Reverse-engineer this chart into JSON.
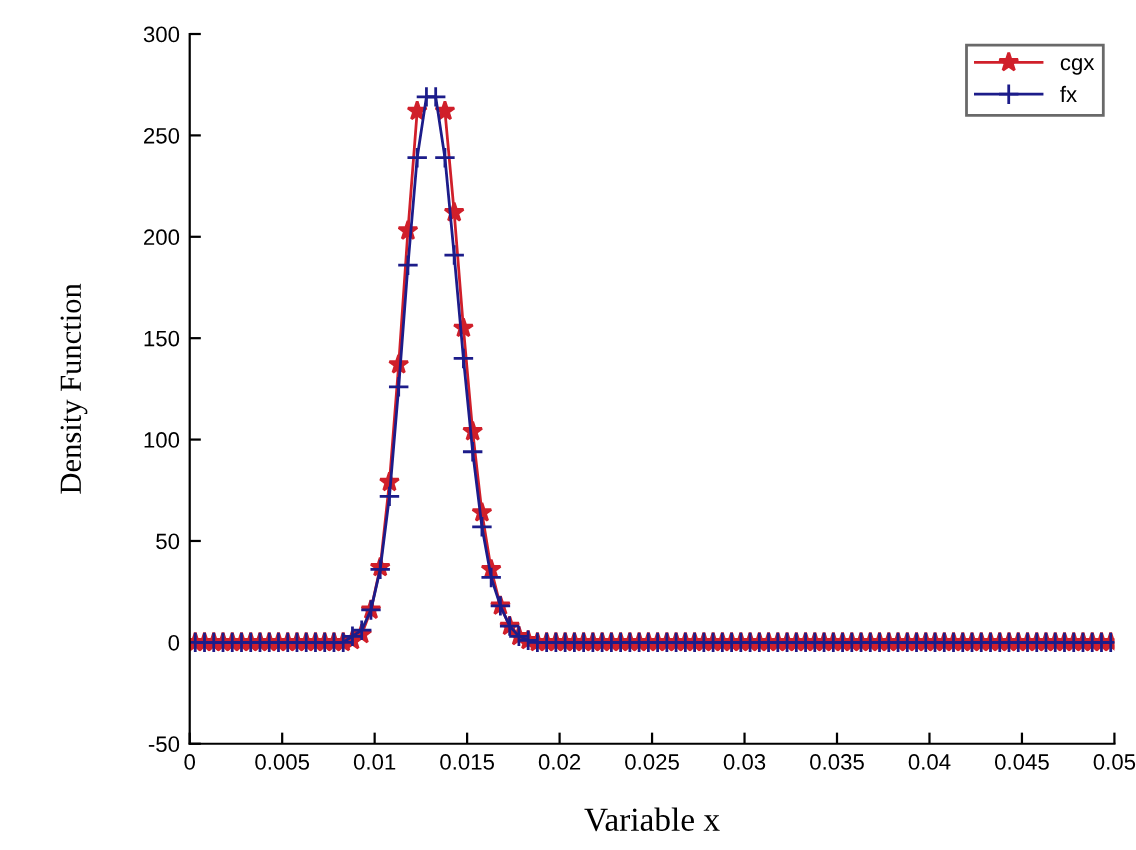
{
  "chart_data": {
    "type": "line",
    "xlabel": "Variable x",
    "ylabel": "Density Function",
    "x": [
      0.0003,
      0.0008,
      0.0013,
      0.0018,
      0.0023,
      0.0028,
      0.0033,
      0.0038,
      0.0043,
      0.0048,
      0.0053,
      0.0058,
      0.0063,
      0.0068,
      0.0073,
      0.0078,
      0.0083,
      0.0088,
      0.0093,
      0.0098,
      0.0103,
      0.0108,
      0.0113,
      0.0118,
      0.0123,
      0.0128,
      0.0133,
      0.0138,
      0.0143,
      0.0148,
      0.0153,
      0.0158,
      0.0163,
      0.0168,
      0.0173,
      0.0178,
      0.0183,
      0.0188,
      0.0193,
      0.0198,
      0.0203,
      0.0208,
      0.0213,
      0.0218,
      0.0223,
      0.0228,
      0.0233,
      0.0238,
      0.0243,
      0.0248,
      0.0253,
      0.0258,
      0.0263,
      0.0268,
      0.0273,
      0.0278,
      0.0283,
      0.0288,
      0.0293,
      0.0298,
      0.0303,
      0.0308,
      0.0313,
      0.0318,
      0.0323,
      0.0328,
      0.0333,
      0.0338,
      0.0343,
      0.0348,
      0.0353,
      0.0358,
      0.0363,
      0.0368,
      0.0373,
      0.0378,
      0.0383,
      0.0388,
      0.0393,
      0.0398,
      0.0403,
      0.0408,
      0.0413,
      0.0418,
      0.0423,
      0.0428,
      0.0433,
      0.0438,
      0.0443,
      0.0448,
      0.0453,
      0.0458,
      0.0463,
      0.0468,
      0.0473,
      0.0478,
      0.0483,
      0.0488,
      0.0493,
      0.0498
    ],
    "series": [
      {
        "name": "cgx",
        "color": "#d01f2a",
        "marker": "star",
        "values": [
          0,
          0,
          0,
          0,
          0,
          0,
          0,
          0,
          0,
          0,
          0,
          0,
          0,
          0,
          0,
          0,
          0,
          1,
          4,
          16,
          37,
          79,
          137,
          203,
          262,
          null,
          null,
          262,
          212,
          155,
          104,
          64,
          36,
          18,
          8,
          3,
          1,
          0,
          0,
          0,
          0,
          0,
          0,
          0,
          0,
          0,
          0,
          0,
          0,
          0,
          0,
          0,
          0,
          0,
          0,
          0,
          0,
          0,
          0,
          0,
          0,
          0,
          0,
          0,
          0,
          0,
          0,
          0,
          0,
          0,
          0,
          0,
          0,
          0,
          0,
          0,
          0,
          0,
          0,
          0,
          0,
          0,
          0,
          0,
          0,
          0,
          0,
          0,
          0,
          0,
          0,
          0,
          0,
          0,
          0,
          0,
          0,
          0,
          0,
          0
        ]
      },
      {
        "name": "fx",
        "color": "#1c1c8a",
        "marker": "cross",
        "values": [
          0,
          0,
          0,
          0,
          0,
          0,
          0,
          0,
          0,
          0,
          0,
          0,
          0,
          0,
          0,
          0,
          0,
          3,
          6,
          16,
          36,
          72,
          126,
          186,
          239,
          269,
          269,
          239,
          191,
          140,
          94,
          57,
          32,
          18,
          8,
          3,
          1,
          0,
          0,
          0,
          0,
          0,
          0,
          0,
          0,
          0,
          0,
          0,
          0,
          0,
          0,
          0,
          0,
          0,
          0,
          0,
          0,
          0,
          0,
          0,
          0,
          0,
          0,
          0,
          0,
          0,
          0,
          0,
          0,
          0,
          0,
          0,
          0,
          0,
          0,
          0,
          0,
          0,
          0,
          0,
          0,
          0,
          0,
          0,
          0,
          0,
          0,
          0,
          0,
          0,
          0,
          0,
          0,
          0,
          0,
          0,
          0,
          0,
          0,
          0
        ]
      }
    ],
    "xlim": [
      0,
      0.05
    ],
    "xticks": [
      0,
      0.005,
      0.01,
      0.015,
      0.02,
      0.025,
      0.03,
      0.035,
      0.04,
      0.045,
      0.05
    ],
    "ylim": [
      -50,
      300
    ],
    "yticks": [
      -50,
      0,
      50,
      100,
      150,
      200,
      250,
      300
    ],
    "grid": false,
    "legend": "top right",
    "line_style": "solid"
  }
}
